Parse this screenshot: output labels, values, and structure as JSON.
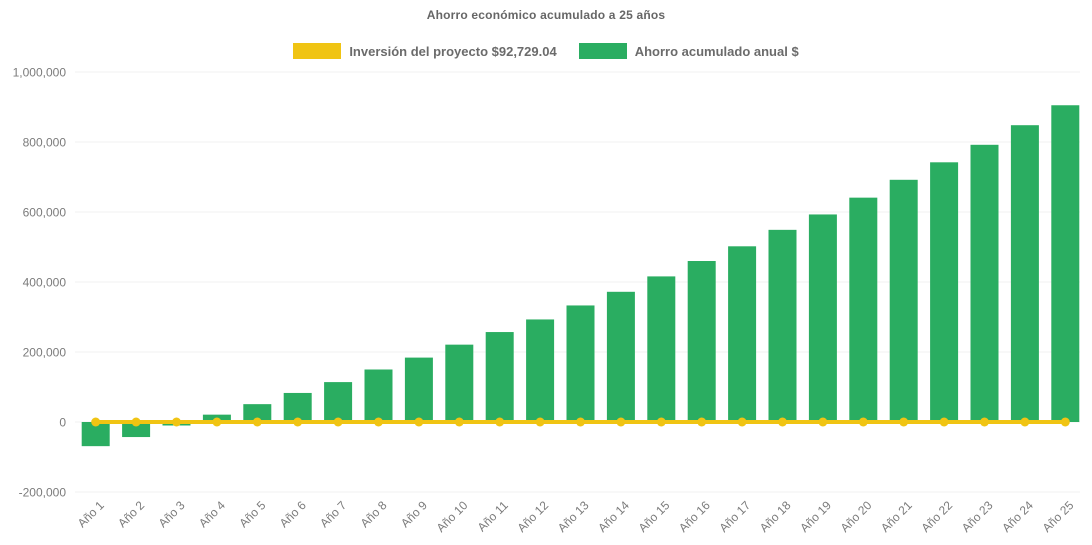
{
  "chart_data": {
    "type": "bar-line-combo",
    "title": "Ahorro económico acumulado a 25 años",
    "legend_position": "top",
    "grid": "faint-horizontal",
    "categories": [
      "Año 1",
      "Año 2",
      "Año 3",
      "Año 4",
      "Año 5",
      "Año 6",
      "Año 7",
      "Año 8",
      "Año 9",
      "Año 10",
      "Año 11",
      "Año 12",
      "Año 13",
      "Año 14",
      "Año 15",
      "Año 16",
      "Año 17",
      "Año 18",
      "Año 19",
      "Año 20",
      "Año 21",
      "Año 22",
      "Año 23",
      "Año 24",
      "Año 25"
    ],
    "series": [
      {
        "name": "Inversión del proyecto $92,729.04",
        "type": "line",
        "marker": "circle",
        "color": "#F0C413",
        "values": [
          0,
          0,
          0,
          0,
          0,
          0,
          0,
          0,
          0,
          0,
          0,
          0,
          0,
          0,
          0,
          0,
          0,
          0,
          0,
          0,
          0,
          0,
          0,
          0,
          0
        ]
      },
      {
        "name": "Ahorro acumulado anual $",
        "type": "bar",
        "color": "#2AAD61",
        "values": [
          -69000,
          -43000,
          -10000,
          21000,
          51000,
          83000,
          114000,
          150000,
          184000,
          221000,
          257000,
          293000,
          333000,
          372000,
          416000,
          460000,
          502000,
          549000,
          593000,
          641000,
          692000,
          742000,
          792000,
          848000,
          905000
        ]
      }
    ],
    "y_axis": {
      "min": -200000,
      "max": 1000000,
      "tick_step": 200000,
      "tick_labels": [
        "1,000,000",
        "800,000",
        "600,000",
        "400,000",
        "200,000",
        "0",
        "-200,000"
      ]
    },
    "x_axis": {
      "label_rotation": -45
    },
    "colors": {
      "title_text": "#666666",
      "legend_text": "#6B6B6B",
      "tick_text": "#7B7B7B"
    }
  }
}
